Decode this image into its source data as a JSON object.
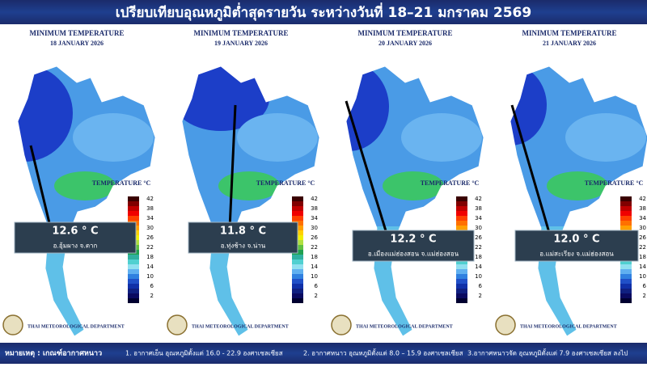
{
  "header": {
    "title": "เปรียบเทียบอุณหภูมิต่ำสุดรายวัน ระหว่างวันที่ 18–21 มกราคม 2569"
  },
  "panels": [
    {
      "heading": "MINIMUM TEMPERATURE",
      "date": "18 JANUARY 2026",
      "scale_title": "TEMPERATURE °C",
      "min_temp": "12.6 ° C",
      "station": "อ.อุ้มผาง จ.ตาก",
      "department": "THAI METEOROLOGICAL DEPARTMENT"
    },
    {
      "heading": "MINIMUM TEMPERATURE",
      "date": "19 JANUARY 2026",
      "scale_title": "TEMPERATURE °C",
      "min_temp": "11.8 ° C",
      "station": "อ.ทุ่งช้าง จ.น่าน",
      "department": "THAI METEOROLOGICAL DEPARTMENT"
    },
    {
      "heading": "MINIMUM TEMPERATURE",
      "date": "20 JANUARY 2026",
      "scale_title": "TEMPERATURE °C",
      "min_temp": "12.2 ° C",
      "station": "อ.เมืองแม่ฮ่องสอน จ.แม่ฮ่องสอน",
      "department": "THAI METEOROLOGICAL DEPARTMENT"
    },
    {
      "heading": "MINIMUM TEMPERATURE",
      "date": "21 JANUARY 2026",
      "scale_title": "TEMPERATURE °C",
      "min_temp": "12.0 ° C",
      "station": "อ.แม่สะเรียง จ.แม่ฮ่องสอน",
      "department": "THAI METEOROLOGICAL DEPARTMENT"
    }
  ],
  "scale_labels": [
    "42",
    "38",
    "34",
    "30",
    "26",
    "22",
    "18",
    "14",
    "10",
    "6",
    "2"
  ],
  "footer": {
    "note": "หมายเหตุ : เกณฑ์อากาศหนาว",
    "items": [
      "1. อากาศเย็น อุณหภูมิตั้งแต่ 16.0 - 22.9 องศาเซลเซียส",
      "2. อากาศหนาว อุณหภูมิตั้งแต่ 8.0 – 15.9 องศาเซลเซียส",
      "3.อากาศหนาวจัด อุณหภูมิตั้งแต่ 7.9 องศาเซลเซียส ลงไป"
    ]
  }
}
